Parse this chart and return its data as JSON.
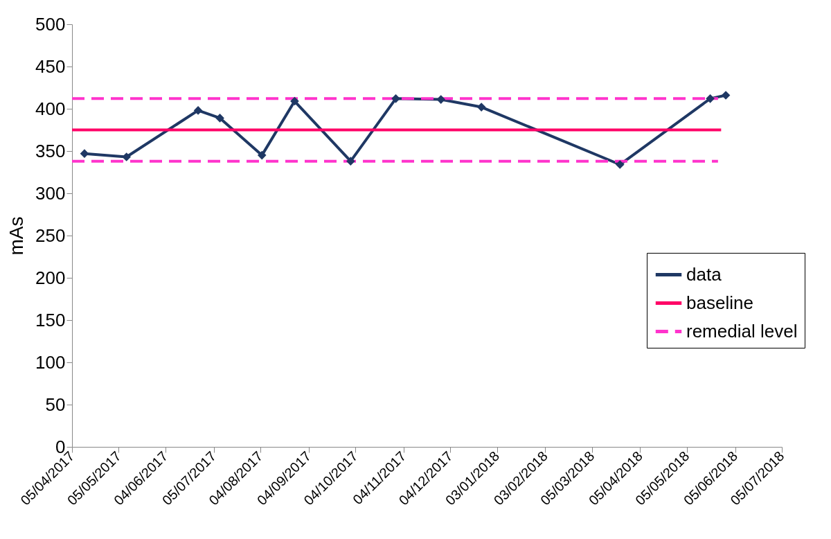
{
  "chart_data": {
    "type": "line",
    "ylabel": "mAs",
    "ylim": [
      0,
      500
    ],
    "yticks": [
      0,
      50,
      100,
      150,
      200,
      250,
      300,
      350,
      400,
      450,
      500
    ],
    "xlim": [
      "2017-04-05",
      "2018-07-05"
    ],
    "xticks": [
      {
        "value": "2017-04-05",
        "label": "05/04/2017"
      },
      {
        "value": "2017-05-05",
        "label": "05/05/2017"
      },
      {
        "value": "2017-06-04",
        "label": "04/06/2017"
      },
      {
        "value": "2017-07-05",
        "label": "05/07/2017"
      },
      {
        "value": "2017-08-04",
        "label": "04/08/2017"
      },
      {
        "value": "2017-09-04",
        "label": "04/09/2017"
      },
      {
        "value": "2017-10-04",
        "label": "04/10/2017"
      },
      {
        "value": "2017-11-04",
        "label": "04/11/2017"
      },
      {
        "value": "2017-12-04",
        "label": "04/12/2017"
      },
      {
        "value": "2018-01-03",
        "label": "03/01/2018"
      },
      {
        "value": "2018-02-03",
        "label": "03/02/2018"
      },
      {
        "value": "2018-03-05",
        "label": "05/03/2018"
      },
      {
        "value": "2018-04-05",
        "label": "05/04/2018"
      },
      {
        "value": "2018-05-05",
        "label": "05/05/2018"
      },
      {
        "value": "2018-06-05",
        "label": "05/06/2018"
      },
      {
        "value": "2018-07-05",
        "label": "05/07/2018"
      }
    ],
    "grid": false,
    "legend": "right",
    "series": [
      {
        "name": "data",
        "color": "#1f3864",
        "marker": "diamond",
        "line_style": "solid",
        "x": [
          "2017-04-13",
          "2017-05-10",
          "2017-06-25",
          "2017-07-09",
          "2017-08-05",
          "2017-08-26",
          "2017-10-01",
          "2017-10-30",
          "2017-11-28",
          "2017-12-24",
          "2018-03-23",
          "2018-05-20",
          "2018-05-30"
        ],
        "values": [
          347,
          343,
          398,
          389,
          345,
          409,
          338,
          412,
          411,
          402,
          334,
          412,
          416
        ]
      },
      {
        "name": "baseline",
        "color": "#ff0066",
        "marker": "none",
        "line_style": "solid",
        "x": [
          "2017-04-05",
          "2018-05-27"
        ],
        "values": [
          375,
          375
        ]
      },
      {
        "name": "remedial level",
        "color": "#ff33cc",
        "marker": "none",
        "line_style": "dashed",
        "x": [
          "2017-04-05",
          "2018-05-25"
        ],
        "values": [
          412,
          412
        ]
      },
      {
        "color": "#ff33cc",
        "marker": "none",
        "line_style": "dashed",
        "x": [
          "2017-04-05",
          "2018-05-25"
        ],
        "values": [
          338,
          338
        ]
      }
    ]
  }
}
